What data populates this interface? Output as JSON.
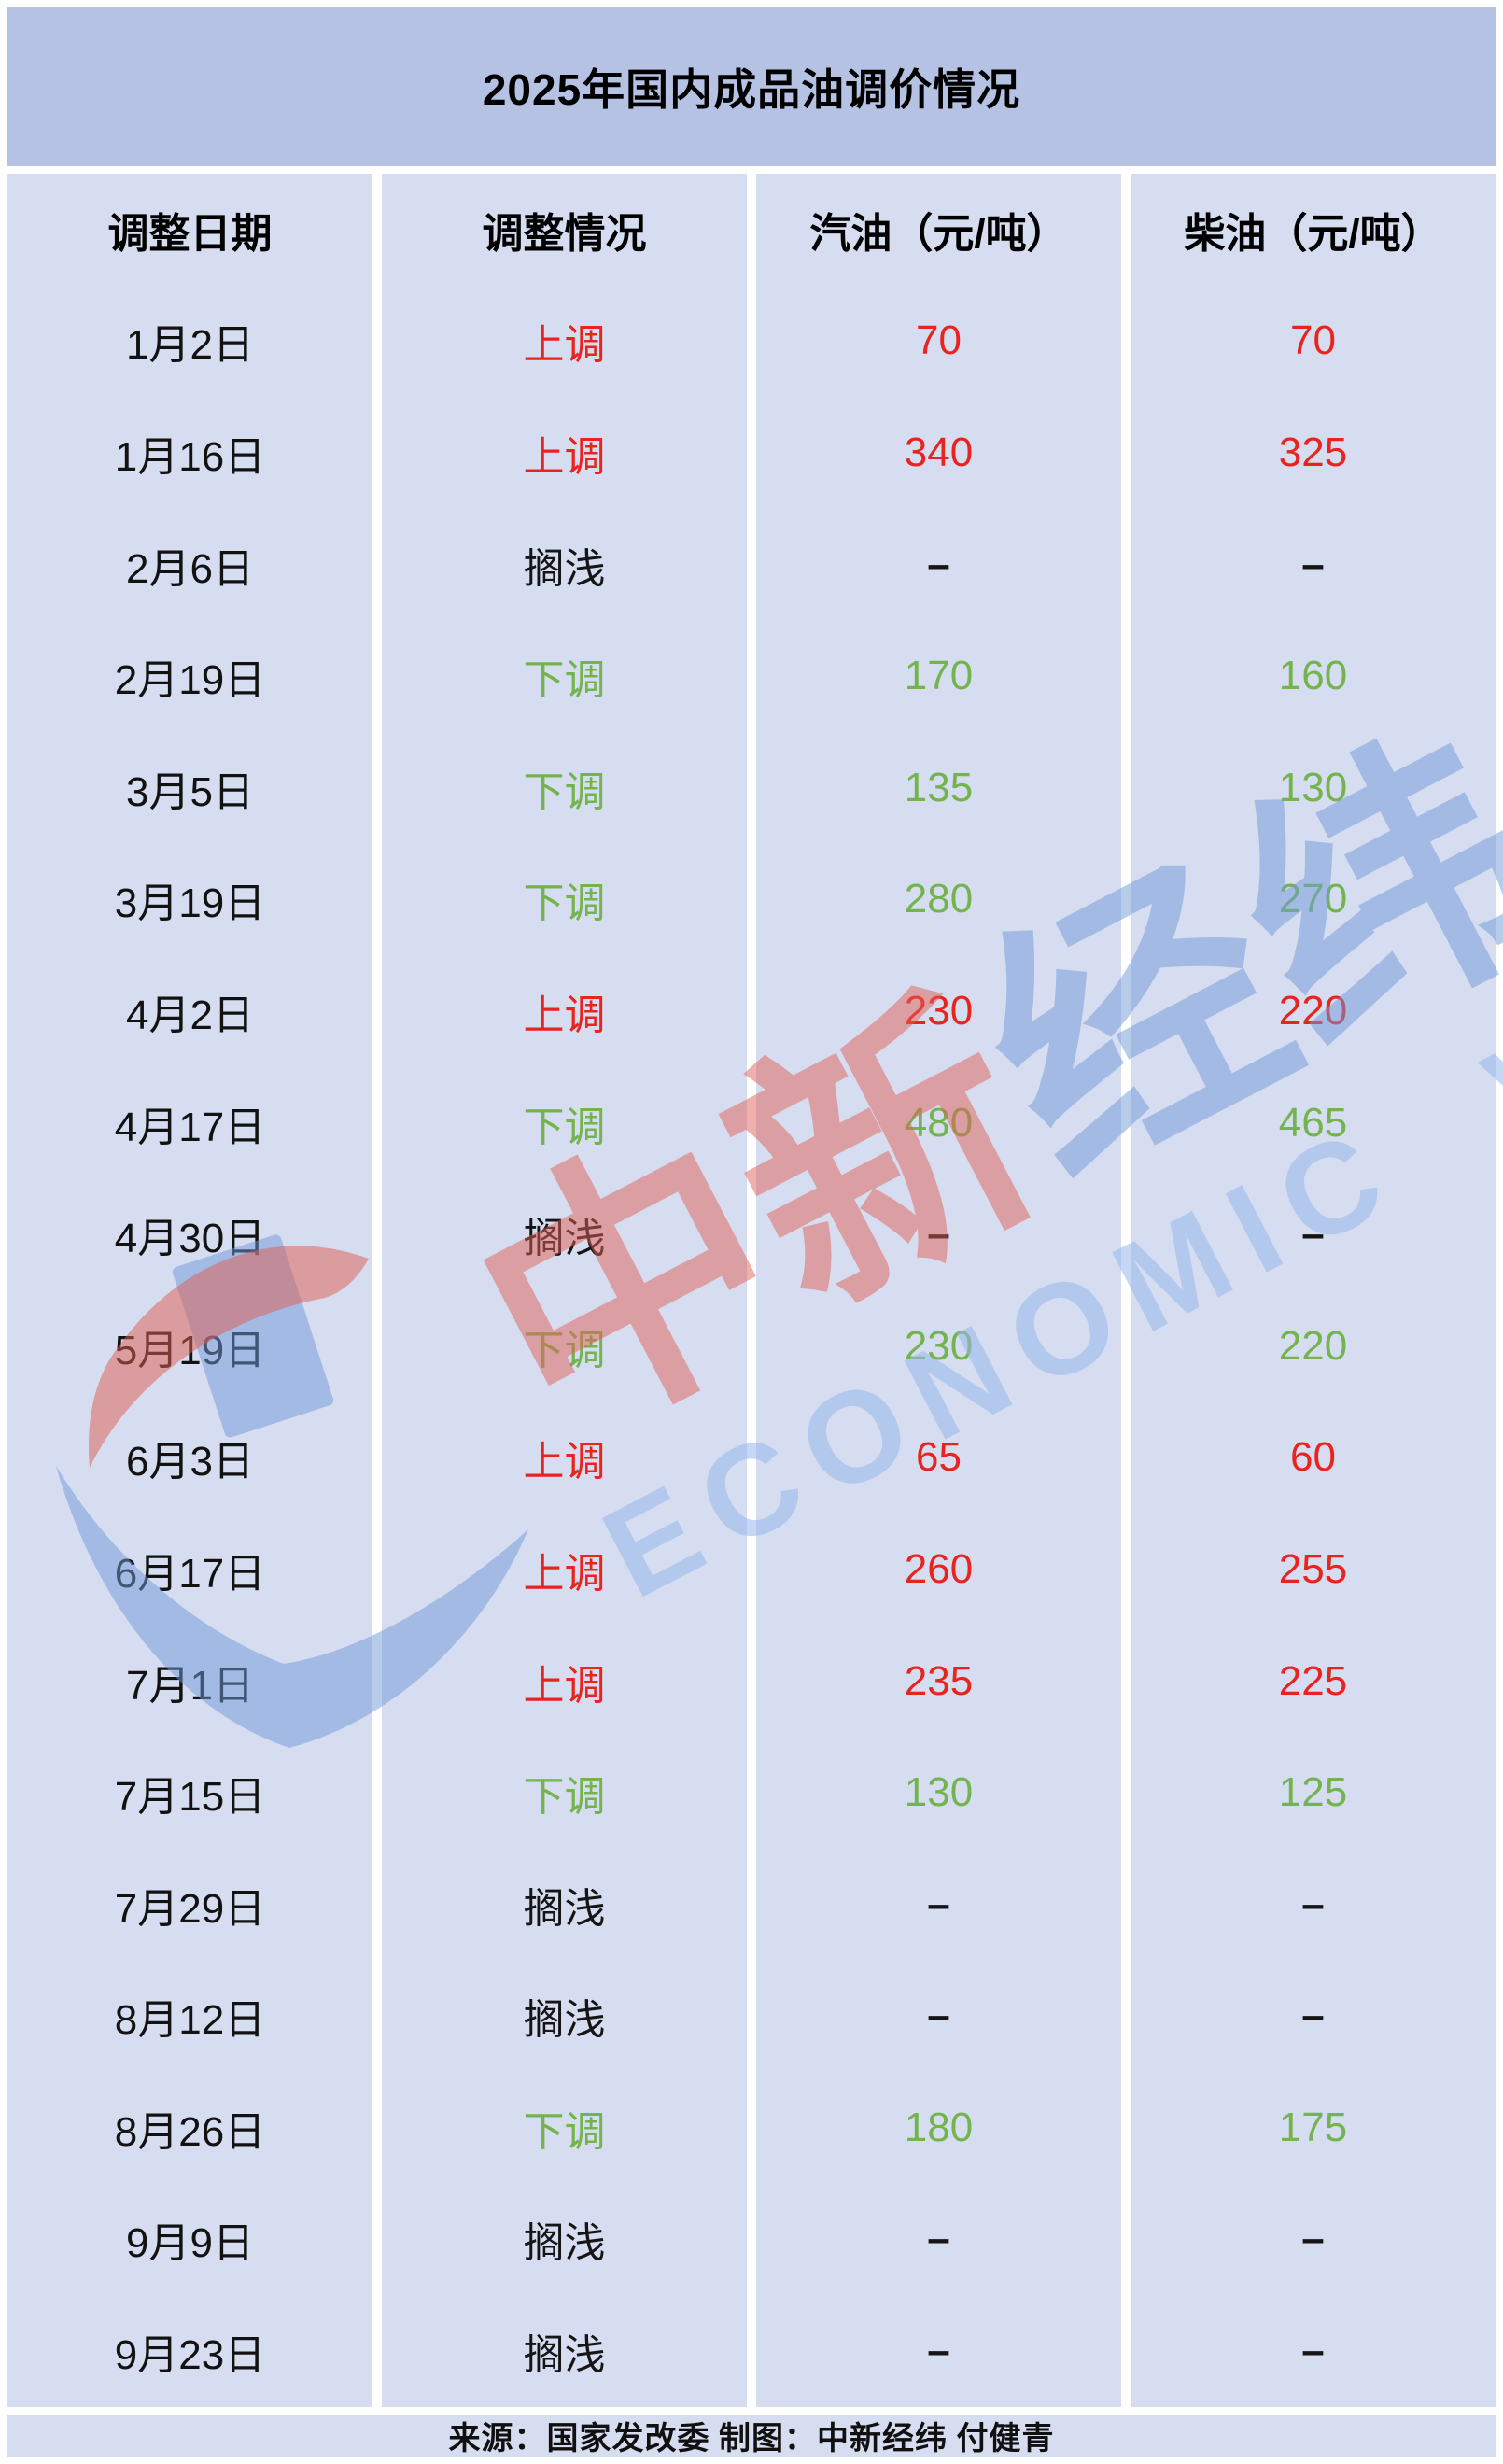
{
  "title": "2025年国内成品油调价情况",
  "table": {
    "columns": [
      "调整日期",
      "调整情况",
      "汽油（元/吨）",
      "柴油（元/吨）"
    ],
    "rows": [
      {
        "date": "1月2日",
        "status": "上调",
        "dir": "up",
        "gasoline": "70",
        "diesel": "70"
      },
      {
        "date": "1月16日",
        "status": "上调",
        "dir": "up",
        "gasoline": "340",
        "diesel": "325"
      },
      {
        "date": "2月6日",
        "status": "搁浅",
        "dir": "hold",
        "gasoline": "–",
        "diesel": "–"
      },
      {
        "date": "2月19日",
        "status": "下调",
        "dir": "down",
        "gasoline": "170",
        "diesel": "160"
      },
      {
        "date": "3月5日",
        "status": "下调",
        "dir": "down",
        "gasoline": "135",
        "diesel": "130"
      },
      {
        "date": "3月19日",
        "status": "下调",
        "dir": "down",
        "gasoline": "280",
        "diesel": "270"
      },
      {
        "date": "4月2日",
        "status": "上调",
        "dir": "up",
        "gasoline": "230",
        "diesel": "220"
      },
      {
        "date": "4月17日",
        "status": "下调",
        "dir": "down",
        "gasoline": "480",
        "diesel": "465"
      },
      {
        "date": "4月30日",
        "status": "搁浅",
        "dir": "hold",
        "gasoline": "–",
        "diesel": "–"
      },
      {
        "date": "5月19日",
        "status": "下调",
        "dir": "down",
        "gasoline": "230",
        "diesel": "220"
      },
      {
        "date": "6月3日",
        "status": "上调",
        "dir": "up",
        "gasoline": "65",
        "diesel": "60"
      },
      {
        "date": "6月17日",
        "status": "上调",
        "dir": "up",
        "gasoline": "260",
        "diesel": "255"
      },
      {
        "date": "7月1日",
        "status": "上调",
        "dir": "up",
        "gasoline": "235",
        "diesel": "225"
      },
      {
        "date": "7月15日",
        "status": "下调",
        "dir": "down",
        "gasoline": "130",
        "diesel": "125"
      },
      {
        "date": "7月29日",
        "status": "搁浅",
        "dir": "hold",
        "gasoline": "–",
        "diesel": "–"
      },
      {
        "date": "8月12日",
        "status": "搁浅",
        "dir": "hold",
        "gasoline": "–",
        "diesel": "–"
      },
      {
        "date": "8月26日",
        "status": "下调",
        "dir": "down",
        "gasoline": "180",
        "diesel": "175"
      },
      {
        "date": "9月9日",
        "status": "搁浅",
        "dir": "hold",
        "gasoline": "–",
        "diesel": "–"
      },
      {
        "date": "9月23日",
        "status": "搁浅",
        "dir": "hold",
        "gasoline": "–",
        "diesel": "–"
      }
    ]
  },
  "footer": "来源：国家发改委 制图：中新经纬 付健青",
  "watermark": {
    "cn_red": "中新",
    "cn_blue": "经纬",
    "en": "ECONOMIC VIEW",
    "logo": "zhongxin-jingwei-swoosh"
  },
  "colors": {
    "up_red": "#e9231e",
    "down_green": "#74b44f",
    "hold_black": "#151515",
    "title_band": "#b5c2e4",
    "cell_bg": "#d6ddf0",
    "watermark_red": "rgba(223,95,85,0.50)",
    "watermark_blue": "rgba(111,154,216,0.50)"
  },
  "chart_data": {
    "type": "table",
    "title": "2025年国内成品油调价情况",
    "columns": [
      "调整日期",
      "调整情况",
      "汽油（元/吨）",
      "柴油（元/吨）"
    ],
    "rows": [
      [
        "1月2日",
        "上调",
        70,
        70
      ],
      [
        "1月16日",
        "上调",
        340,
        325
      ],
      [
        "2月6日",
        "搁浅",
        null,
        null
      ],
      [
        "2月19日",
        "下调",
        170,
        160
      ],
      [
        "3月5日",
        "下调",
        135,
        130
      ],
      [
        "3月19日",
        "下调",
        280,
        270
      ],
      [
        "4月2日",
        "上调",
        230,
        220
      ],
      [
        "4月17日",
        "下调",
        480,
        465
      ],
      [
        "4月30日",
        "搁浅",
        null,
        null
      ],
      [
        "5月19日",
        "下调",
        230,
        220
      ],
      [
        "6月3日",
        "上调",
        65,
        60
      ],
      [
        "6月17日",
        "上调",
        260,
        255
      ],
      [
        "7月1日",
        "上调",
        235,
        225
      ],
      [
        "7月15日",
        "下调",
        130,
        125
      ],
      [
        "7月29日",
        "搁浅",
        null,
        null
      ],
      [
        "8月12日",
        "搁浅",
        null,
        null
      ],
      [
        "8月26日",
        "下调",
        180,
        175
      ],
      [
        "9月9日",
        "搁浅",
        null,
        null
      ],
      [
        "9月23日",
        "搁浅",
        null,
        null
      ]
    ],
    "legend": {
      "上调": "price raised — shown in red",
      "下调": "price lowered — shown in green",
      "搁浅": "adjustment stranded / no change — shown as black dash"
    },
    "source": "来源：国家发改委 制图：中新经纬 付健青"
  }
}
